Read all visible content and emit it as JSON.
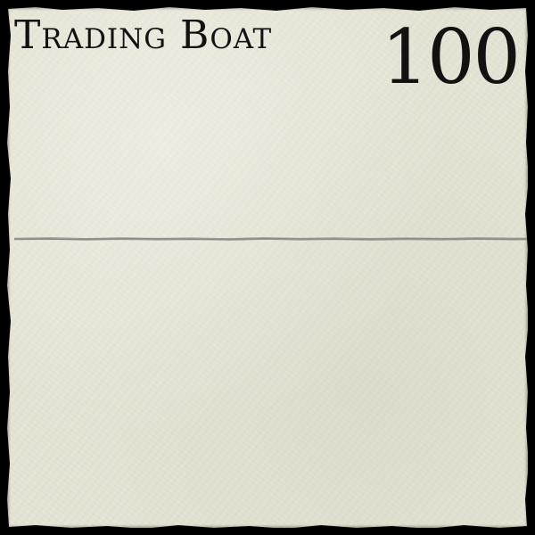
{
  "card": {
    "title": "Trading Boat",
    "cost": "100",
    "colors": {
      "parchment": "#e6e4d5",
      "border": "#000000",
      "ink": "#141210",
      "divider": "#8a8a86"
    }
  }
}
